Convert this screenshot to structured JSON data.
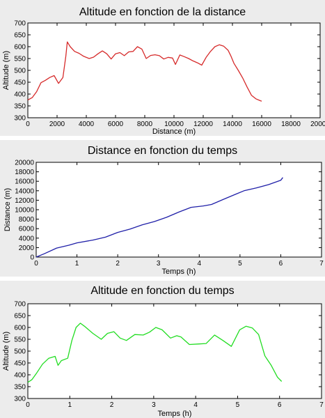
{
  "chart_data": [
    {
      "type": "line",
      "title": "Altitude en fonction de la distance",
      "xlabel": "Distance (m)",
      "ylabel": "Altitude (m)",
      "xlim": [
        0,
        20000
      ],
      "ylim": [
        300,
        700
      ],
      "xticks": [
        "0",
        "2000",
        "4000",
        "6000",
        "8000",
        "10000",
        "12000",
        "14000",
        "16000",
        "18000",
        "20000"
      ],
      "yticks": [
        "300",
        "350",
        "400",
        "450",
        "500",
        "550",
        "600",
        "650",
        "700"
      ],
      "grid": false,
      "series": [
        {
          "color": "#d62a2a",
          "x": [
            0,
            300,
            600,
            900,
            1200,
            1500,
            1800,
            2100,
            2400,
            2600,
            2700,
            2900,
            3200,
            3500,
            3800,
            4200,
            4500,
            4800,
            5100,
            5400,
            5700,
            6000,
            6300,
            6600,
            6900,
            7200,
            7500,
            7800,
            8100,
            8400,
            8700,
            9000,
            9300,
            9600,
            9900,
            10100,
            10400,
            10700,
            11000,
            11300,
            11600,
            11900,
            12200,
            12500,
            12800,
            13100,
            13400,
            13700,
            13900,
            14100,
            14400,
            14700,
            15000,
            15300,
            15600,
            15900,
            16000
          ],
          "y": [
            375,
            385,
            410,
            448,
            458,
            470,
            478,
            445,
            470,
            560,
            620,
            600,
            580,
            572,
            560,
            550,
            556,
            570,
            582,
            570,
            548,
            570,
            575,
            562,
            578,
            580,
            600,
            590,
            550,
            563,
            566,
            562,
            548,
            555,
            552,
            525,
            565,
            558,
            550,
            540,
            532,
            522,
            555,
            580,
            600,
            608,
            602,
            585,
            560,
            530,
            500,
            468,
            430,
            395,
            380,
            372,
            370
          ]
        }
      ]
    },
    {
      "type": "line",
      "title": "Distance en fonction du temps",
      "xlabel": "Temps (h)",
      "ylabel": "Distance (m)",
      "xlim": [
        0,
        7
      ],
      "ylim": [
        0,
        20000
      ],
      "xticks": [
        "0",
        "1",
        "2",
        "3",
        "4",
        "5",
        "6",
        "7"
      ],
      "yticks": [
        "0",
        "2000",
        "4000",
        "6000",
        "8000",
        "10000",
        "12000",
        "14000",
        "16000",
        "18000",
        "20000"
      ],
      "grid": false,
      "series": [
        {
          "color": "#1f1fa8",
          "x": [
            0,
            0.2,
            0.5,
            0.8,
            1.0,
            1.4,
            1.7,
            2.0,
            2.3,
            2.6,
            2.9,
            3.2,
            3.5,
            3.8,
            4.1,
            4.3,
            4.6,
            4.9,
            5.1,
            5.4,
            5.7,
            6.0,
            6.05
          ],
          "y": [
            0,
            700,
            1900,
            2500,
            3000,
            3600,
            4200,
            5200,
            5900,
            6800,
            7500,
            8400,
            9500,
            10500,
            10800,
            11100,
            12200,
            13300,
            14000,
            14600,
            15300,
            16200,
            16800
          ]
        }
      ]
    },
    {
      "type": "line",
      "title": "Altitude en fonction du temps",
      "xlabel": "Temps (h)",
      "ylabel": "Altitude (m)",
      "xlim": [
        0,
        7
      ],
      "ylim": [
        300,
        700
      ],
      "xticks": [
        "0",
        "1",
        "2",
        "3",
        "4",
        "5",
        "6",
        "7"
      ],
      "yticks": [
        "300",
        "350",
        "400",
        "450",
        "500",
        "550",
        "600",
        "650",
        "700"
      ],
      "grid": false,
      "series": [
        {
          "color": "#22dd22",
          "x": [
            0,
            0.1,
            0.2,
            0.35,
            0.5,
            0.65,
            0.72,
            0.8,
            0.95,
            1.05,
            1.15,
            1.25,
            1.35,
            1.55,
            1.75,
            1.9,
            2.05,
            2.2,
            2.35,
            2.55,
            2.75,
            2.9,
            3.05,
            3.2,
            3.4,
            3.55,
            3.65,
            3.85,
            4.05,
            4.25,
            4.45,
            4.65,
            4.85,
            5.05,
            5.2,
            5.35,
            5.5,
            5.65,
            5.8,
            5.95,
            6.05
          ],
          "y": [
            368,
            380,
            405,
            445,
            470,
            478,
            440,
            460,
            470,
            545,
            600,
            618,
            605,
            575,
            550,
            575,
            582,
            555,
            545,
            570,
            568,
            580,
            600,
            590,
            555,
            565,
            560,
            528,
            530,
            532,
            568,
            545,
            520,
            590,
            605,
            598,
            570,
            480,
            440,
            390,
            372
          ]
        }
      ]
    }
  ]
}
